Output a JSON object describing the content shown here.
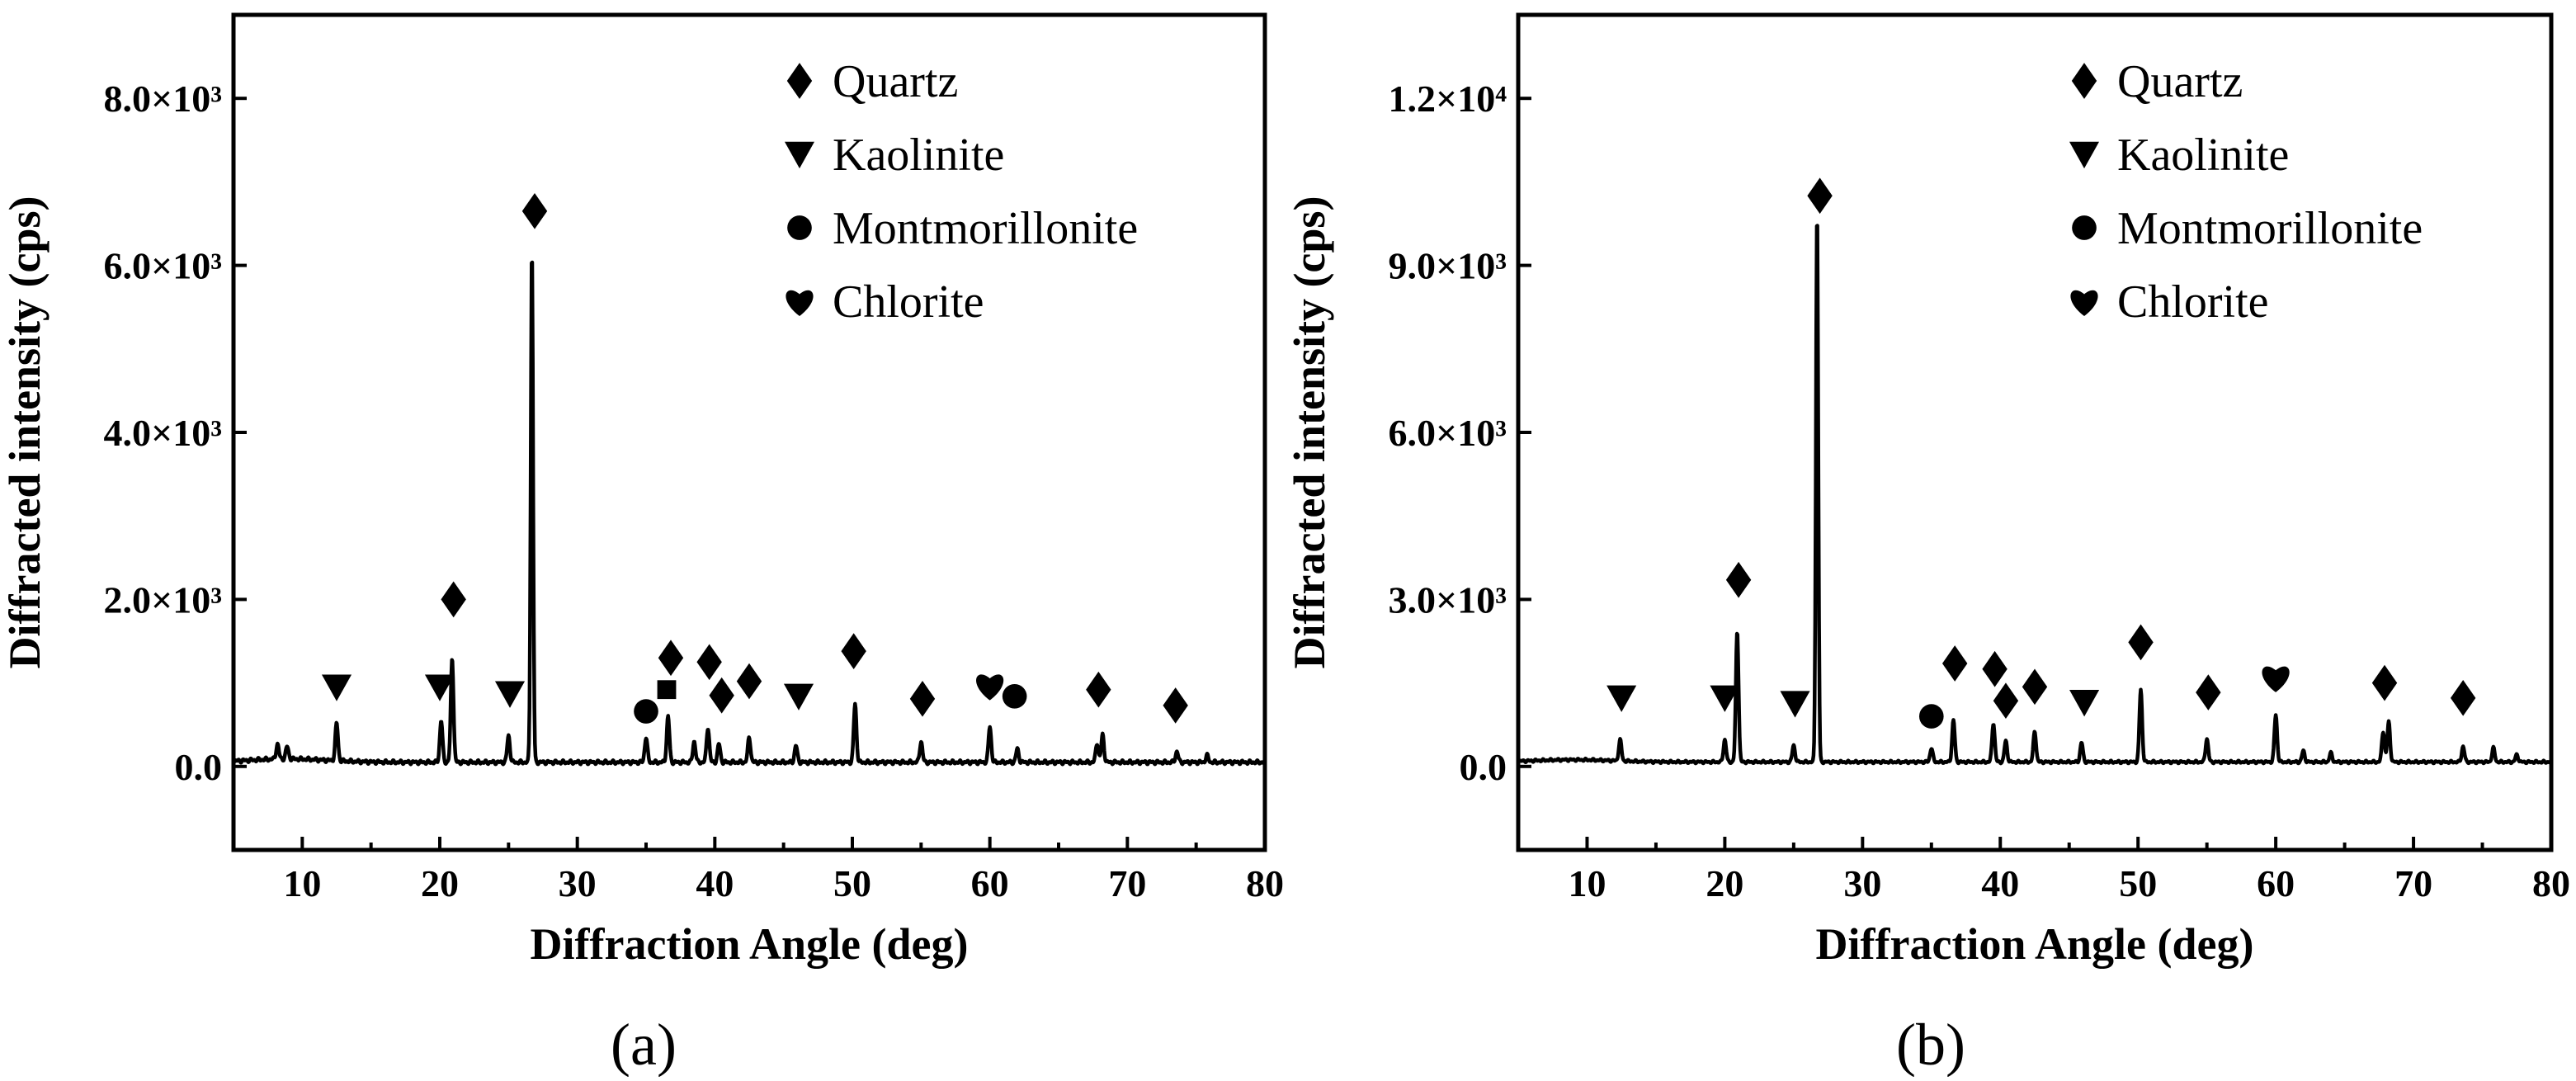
{
  "figure": {
    "panel_labels": [
      "(a)",
      "(b)"
    ]
  },
  "chart_data": [
    {
      "type": "line",
      "panel": "(a)",
      "xlabel": "Diffraction Angle (deg)",
      "ylabel": "Diffracted intensity (cps)",
      "xlim": [
        5,
        80
      ],
      "ylim": [
        -1000,
        9000
      ],
      "xticks": [
        10,
        20,
        30,
        40,
        50,
        60,
        70,
        80
      ],
      "xtick_labels": [
        "10",
        "20",
        "30",
        "40",
        "50",
        "60",
        "70",
        "80"
      ],
      "yticks": [
        0,
        2000,
        4000,
        6000,
        8000
      ],
      "ytick_labels": [
        "0.0",
        "2.0×10³",
        "4.0×10³",
        "6.0×10³",
        "8.0×10³"
      ],
      "baseline": 50,
      "peaks": [
        {
          "x": 8.2,
          "y": 180
        },
        {
          "x": 8.9,
          "y": 150
        },
        {
          "x": 12.5,
          "y": 450
        },
        {
          "x": 20.1,
          "y": 500
        },
        {
          "x": 20.9,
          "y": 1250
        },
        {
          "x": 25.0,
          "y": 320
        },
        {
          "x": 26.7,
          "y": 6150
        },
        {
          "x": 35.0,
          "y": 300
        },
        {
          "x": 36.6,
          "y": 550
        },
        {
          "x": 38.5,
          "y": 250
        },
        {
          "x": 39.5,
          "y": 420
        },
        {
          "x": 40.3,
          "y": 220
        },
        {
          "x": 42.5,
          "y": 300
        },
        {
          "x": 45.9,
          "y": 200
        },
        {
          "x": 50.2,
          "y": 700
        },
        {
          "x": 55.0,
          "y": 250
        },
        {
          "x": 60.0,
          "y": 430
        },
        {
          "x": 62.0,
          "y": 160
        },
        {
          "x": 67.8,
          "y": 230
        },
        {
          "x": 68.2,
          "y": 330
        },
        {
          "x": 73.6,
          "y": 130
        },
        {
          "x": 75.8,
          "y": 80
        }
      ],
      "markers": [
        {
          "x": 12.5,
          "y": 950,
          "phase": "Kaolinite"
        },
        {
          "x": 20.0,
          "y": 950,
          "phase": "Kaolinite"
        },
        {
          "x": 21.0,
          "y": 2000,
          "phase": "Quartz"
        },
        {
          "x": 25.1,
          "y": 870,
          "phase": "Kaolinite"
        },
        {
          "x": 26.9,
          "y": 6650,
          "phase": "Quartz"
        },
        {
          "x": 35.0,
          "y": 660,
          "phase": "Montmorillonite"
        },
        {
          "x": 36.5,
          "y": 920,
          "phase": "Unlabeled square"
        },
        {
          "x": 36.8,
          "y": 1300,
          "phase": "Quartz"
        },
        {
          "x": 39.6,
          "y": 1250,
          "phase": "Quartz"
        },
        {
          "x": 40.5,
          "y": 850,
          "phase": "Quartz"
        },
        {
          "x": 42.5,
          "y": 1020,
          "phase": "Quartz"
        },
        {
          "x": 46.1,
          "y": 840,
          "phase": "Kaolinite"
        },
        {
          "x": 50.1,
          "y": 1380,
          "phase": "Quartz"
        },
        {
          "x": 55.1,
          "y": 810,
          "phase": "Quartz"
        },
        {
          "x": 60.0,
          "y": 970,
          "phase": "Chlorite"
        },
        {
          "x": 61.8,
          "y": 840,
          "phase": "Montmorillonite"
        },
        {
          "x": 67.9,
          "y": 920,
          "phase": "Quartz"
        },
        {
          "x": 73.5,
          "y": 730,
          "phase": "Quartz"
        }
      ],
      "legend": [
        {
          "symbol": "Quartz",
          "label": "Quartz"
        },
        {
          "symbol": "Kaolinite",
          "label": "Kaolinite"
        },
        {
          "symbol": "Montmorillonite",
          "label": "Montmorillonite"
        },
        {
          "symbol": "Chlorite",
          "label": "Chlorite"
        }
      ],
      "legend_position": "top-right"
    },
    {
      "type": "line",
      "panel": "(b)",
      "xlabel": "Diffraction Angle (deg)",
      "ylabel": "Diffracted intensity (cps)",
      "xlim": [
        5,
        80
      ],
      "ylim": [
        -1500,
        13500
      ],
      "xticks": [
        10,
        20,
        30,
        40,
        50,
        60,
        70,
        80
      ],
      "xtick_labels": [
        "10",
        "20",
        "30",
        "40",
        "50",
        "60",
        "70",
        "80"
      ],
      "yticks": [
        0,
        3000,
        6000,
        9000,
        12000
      ],
      "ytick_labels": [
        "0.0",
        "3.0×10³",
        "6.0×10³",
        "9.0×10³",
        "1.2×10⁴"
      ],
      "baseline": 80,
      "peaks": [
        {
          "x": 12.4,
          "y": 380
        },
        {
          "x": 20.0,
          "y": 400
        },
        {
          "x": 20.9,
          "y": 2350
        },
        {
          "x": 25.0,
          "y": 300
        },
        {
          "x": 26.7,
          "y": 9900
        },
        {
          "x": 35.0,
          "y": 250
        },
        {
          "x": 36.6,
          "y": 750
        },
        {
          "x": 39.5,
          "y": 700
        },
        {
          "x": 40.4,
          "y": 380
        },
        {
          "x": 42.5,
          "y": 550
        },
        {
          "x": 45.9,
          "y": 350
        },
        {
          "x": 50.2,
          "y": 1300
        },
        {
          "x": 55.0,
          "y": 420
        },
        {
          "x": 60.0,
          "y": 850
        },
        {
          "x": 62.0,
          "y": 200
        },
        {
          "x": 64.0,
          "y": 160
        },
        {
          "x": 67.8,
          "y": 550
        },
        {
          "x": 68.2,
          "y": 720
        },
        {
          "x": 73.6,
          "y": 280
        },
        {
          "x": 75.8,
          "y": 250
        },
        {
          "x": 77.5,
          "y": 130
        }
      ],
      "markers": [
        {
          "x": 12.5,
          "y": 1230,
          "phase": "Kaolinite"
        },
        {
          "x": 20.0,
          "y": 1230,
          "phase": "Kaolinite"
        },
        {
          "x": 21.0,
          "y": 3350,
          "phase": "Quartz"
        },
        {
          "x": 25.1,
          "y": 1130,
          "phase": "Kaolinite"
        },
        {
          "x": 26.9,
          "y": 10250,
          "phase": "Quartz"
        },
        {
          "x": 35.0,
          "y": 900,
          "phase": "Montmorillonite"
        },
        {
          "x": 36.7,
          "y": 1850,
          "phase": "Quartz"
        },
        {
          "x": 39.6,
          "y": 1750,
          "phase": "Quartz"
        },
        {
          "x": 40.4,
          "y": 1180,
          "phase": "Quartz"
        },
        {
          "x": 42.5,
          "y": 1430,
          "phase": "Quartz"
        },
        {
          "x": 46.1,
          "y": 1150,
          "phase": "Kaolinite"
        },
        {
          "x": 50.2,
          "y": 2230,
          "phase": "Quartz"
        },
        {
          "x": 55.1,
          "y": 1330,
          "phase": "Quartz"
        },
        {
          "x": 60.0,
          "y": 1600,
          "phase": "Chlorite"
        },
        {
          "x": 67.9,
          "y": 1500,
          "phase": "Quartz"
        },
        {
          "x": 73.6,
          "y": 1230,
          "phase": "Quartz"
        }
      ],
      "legend": [
        {
          "symbol": "Quartz",
          "label": "Quartz"
        },
        {
          "symbol": "Kaolinite",
          "label": "Kaolinite"
        },
        {
          "symbol": "Montmorillonite",
          "label": "Montmorillonite"
        },
        {
          "symbol": "Chlorite",
          "label": "Chlorite"
        }
      ],
      "legend_position": "top-right"
    }
  ]
}
